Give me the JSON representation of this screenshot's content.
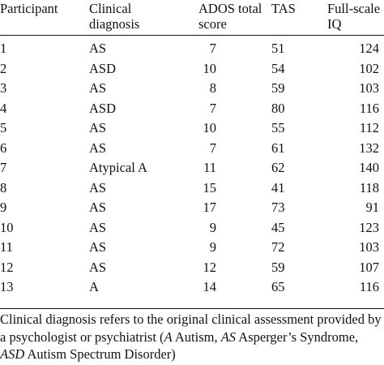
{
  "table": {
    "headers": [
      {
        "line1": "Participant",
        "line2": ""
      },
      {
        "line1": "Clinical",
        "line2": "diagnosis"
      },
      {
        "line1": "ADOS total",
        "line2": "score"
      },
      {
        "line1": "TAS",
        "line2": ""
      },
      {
        "line1": "Full-scale",
        "line2": "IQ"
      }
    ],
    "rows": [
      [
        "1",
        "AS",
        "7",
        "51",
        "124"
      ],
      [
        "2",
        "ASD",
        "10",
        "54",
        "102"
      ],
      [
        "3",
        "AS",
        "8",
        "59",
        "103"
      ],
      [
        "4",
        "ASD",
        "7",
        "80",
        "116"
      ],
      [
        "5",
        "AS",
        "10",
        "55",
        "112"
      ],
      [
        "6",
        "AS",
        "7",
        "61",
        "132"
      ],
      [
        "7",
        "Atypical A",
        "11",
        "62",
        "140"
      ],
      [
        "8",
        "AS",
        "15",
        "41",
        "118"
      ],
      [
        "9",
        "AS",
        "17",
        "73",
        "91"
      ],
      [
        "10",
        "AS",
        "9",
        "45",
        "123"
      ],
      [
        "11",
        "AS",
        "9",
        "72",
        "103"
      ],
      [
        "12",
        "AS",
        "12",
        "59",
        "107"
      ],
      [
        "13",
        "A",
        "14",
        "65",
        "116"
      ]
    ]
  },
  "footnote": {
    "lead": "Clinical diagnosis refers to the original clinical assessment provided by a psychologist or psychiatrist (",
    "abbr1": "A",
    "def1": " Autism, ",
    "abbr2": "AS",
    "def2": " Asperger’s Syndrome, ",
    "abbr3": "ASD",
    "def3": " Autism Spectrum Disorder)"
  }
}
